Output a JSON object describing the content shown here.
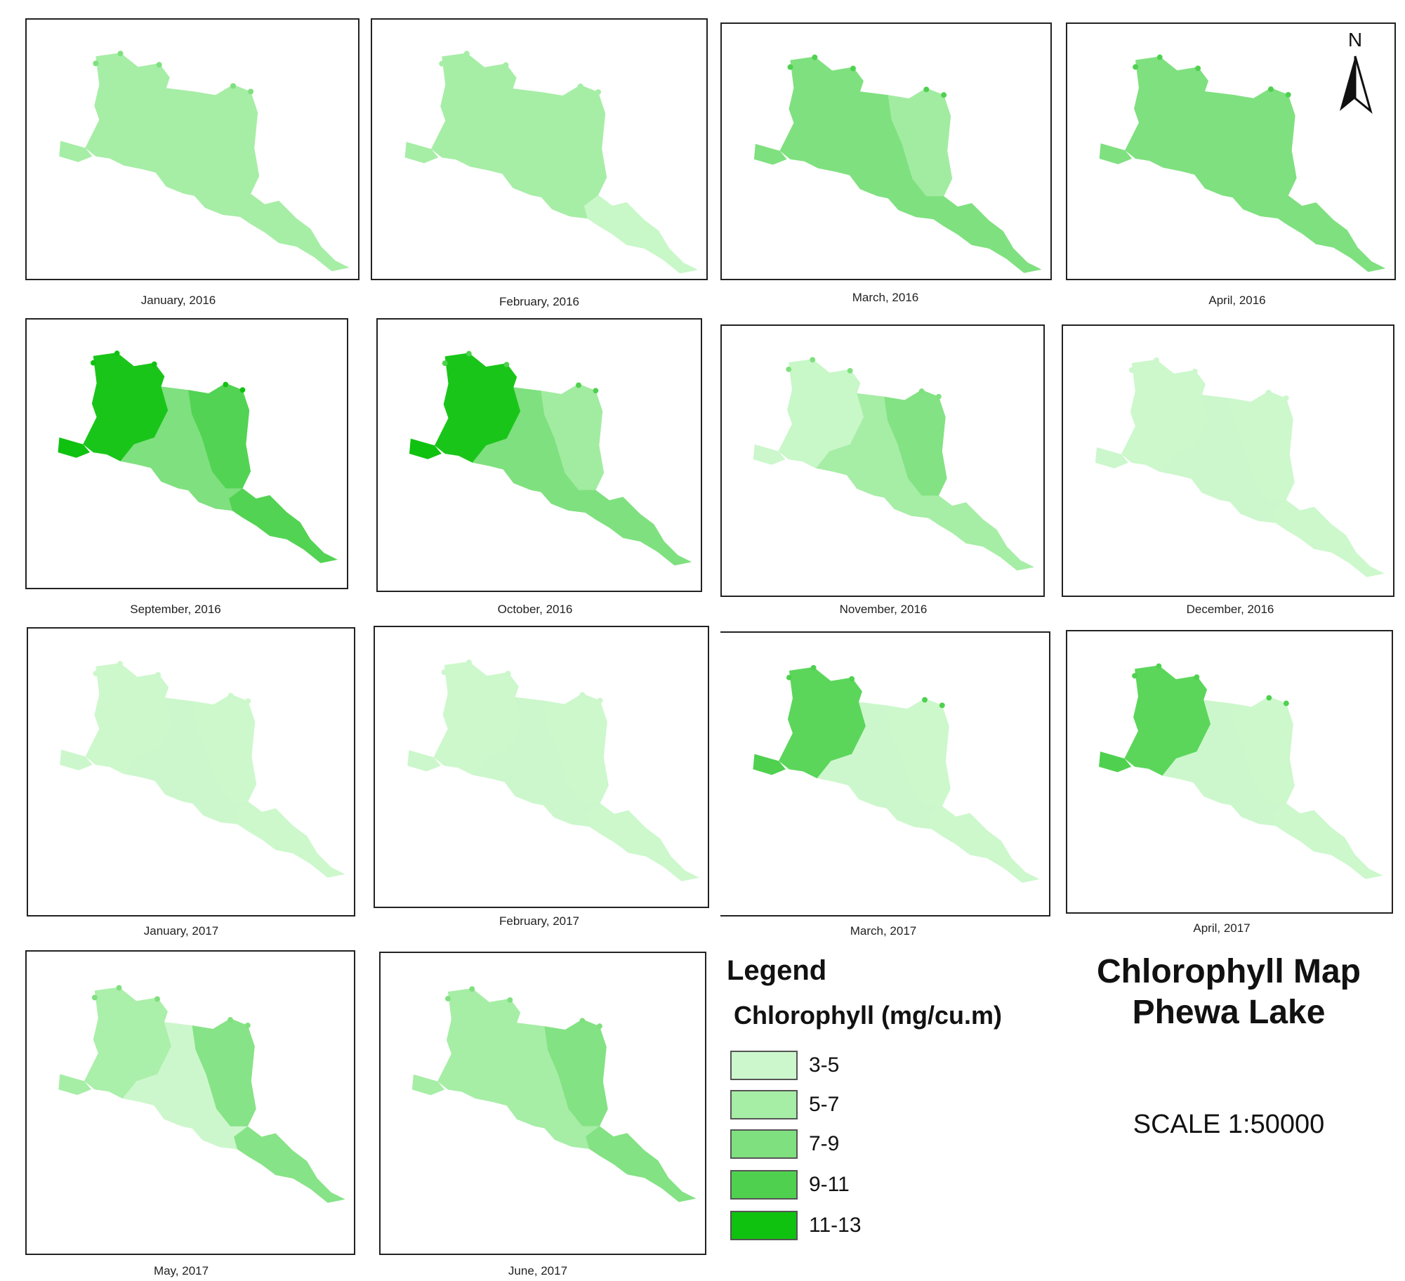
{
  "map": {
    "title_line1": "Chlorophyll Map",
    "title_line2": "Phewa Lake",
    "scale": "SCALE 1:50000",
    "north_label": "N"
  },
  "legend": {
    "title": "Legend",
    "subtitle": "Chlorophyll (mg/cu.m)",
    "classes": [
      {
        "label": "3-5",
        "color": "#ccf7cc"
      },
      {
        "label": "5-7",
        "color": "#a6eda6"
      },
      {
        "label": "7-9",
        "color": "#7fe07f"
      },
      {
        "label": "9-11",
        "color": "#4fd14f"
      },
      {
        "label": "11-13",
        "color": "#10c210"
      }
    ]
  },
  "panels": [
    {
      "caption": "January, 2016",
      "base": 1,
      "east": 1,
      "west": 1,
      "tail": 1,
      "accent": 2
    },
    {
      "caption": "February, 2016",
      "base": 1,
      "east": 1,
      "west": 1,
      "tail": 0,
      "accent": 1
    },
    {
      "caption": "March, 2016",
      "base": 2,
      "east": 1,
      "west": 2,
      "tail": 2,
      "accent": 3
    },
    {
      "caption": "April, 2016",
      "base": 2,
      "east": 2,
      "west": 2,
      "tail": 2,
      "accent": 3
    },
    {
      "caption": "September, 2016",
      "base": 2,
      "east": 3,
      "west": 4,
      "tail": 3,
      "accent": 4
    },
    {
      "caption": "October, 2016",
      "base": 2,
      "east": 1,
      "west": 4,
      "tail": 2,
      "accent": 3
    },
    {
      "caption": "November, 2016",
      "base": 1,
      "east": 2,
      "west": 0,
      "tail": 1,
      "accent": 2
    },
    {
      "caption": "December, 2016",
      "base": 0,
      "east": 0,
      "west": 0,
      "tail": 0,
      "accent": 0
    },
    {
      "caption": "January, 2017",
      "base": 0,
      "east": 0,
      "west": 0,
      "tail": 0,
      "accent": 0
    },
    {
      "caption": "February, 2017",
      "base": 0,
      "east": 0,
      "west": 0,
      "tail": 0,
      "accent": 0
    },
    {
      "caption": "March, 2017",
      "base": 0,
      "east": 0,
      "west": 3,
      "tail": 0,
      "accent": 3
    },
    {
      "caption": "April, 2017",
      "base": 0,
      "east": 0,
      "west": 3,
      "tail": 0,
      "accent": 3
    },
    {
      "caption": "May, 2017",
      "base": 0,
      "east": 2,
      "west": 1,
      "tail": 2,
      "accent": 2
    },
    {
      "caption": "June, 2017",
      "base": 1,
      "east": 2,
      "west": 1,
      "tail": 2,
      "accent": 2
    }
  ]
}
